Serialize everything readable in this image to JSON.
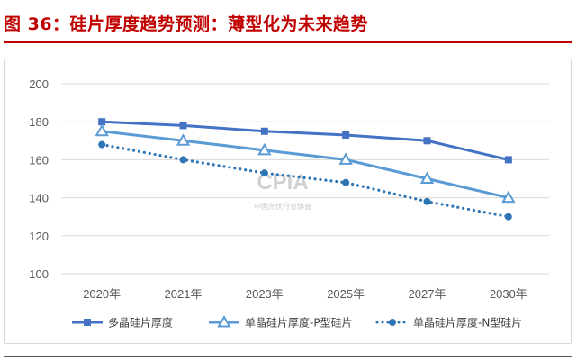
{
  "figure_title": "图 36：硅片厚度趋势预测：薄型化为未来趋势",
  "watermark": {
    "text": "CPIA",
    "subtext": "中国光伏行业协会"
  },
  "chart_data": {
    "type": "line",
    "title": "",
    "xlabel": "",
    "ylabel": "",
    "categories": [
      "2020年",
      "2021年",
      "2023年",
      "2025年",
      "2027年",
      "2030年"
    ],
    "ylim": [
      100,
      200
    ],
    "yticks": [
      100,
      120,
      140,
      160,
      180,
      200
    ],
    "grid": true,
    "legend_position": "bottom",
    "series": [
      {
        "name": "多晶硅片厚度",
        "values": [
          180,
          178,
          175,
          173,
          170,
          160
        ],
        "color": "#4472c4",
        "marker": "square",
        "line_style": "solid"
      },
      {
        "name": "单晶硅片厚度-P型硅片",
        "values": [
          175,
          170,
          165,
          160,
          150,
          140
        ],
        "color": "#5b9bd5",
        "marker": "triangle",
        "line_style": "solid"
      },
      {
        "name": "单晶硅片厚度-N型硅片",
        "values": [
          168,
          160,
          153,
          148,
          138,
          130
        ],
        "color": "#2e75b6",
        "marker": "circle",
        "line_style": "dotted"
      }
    ]
  }
}
